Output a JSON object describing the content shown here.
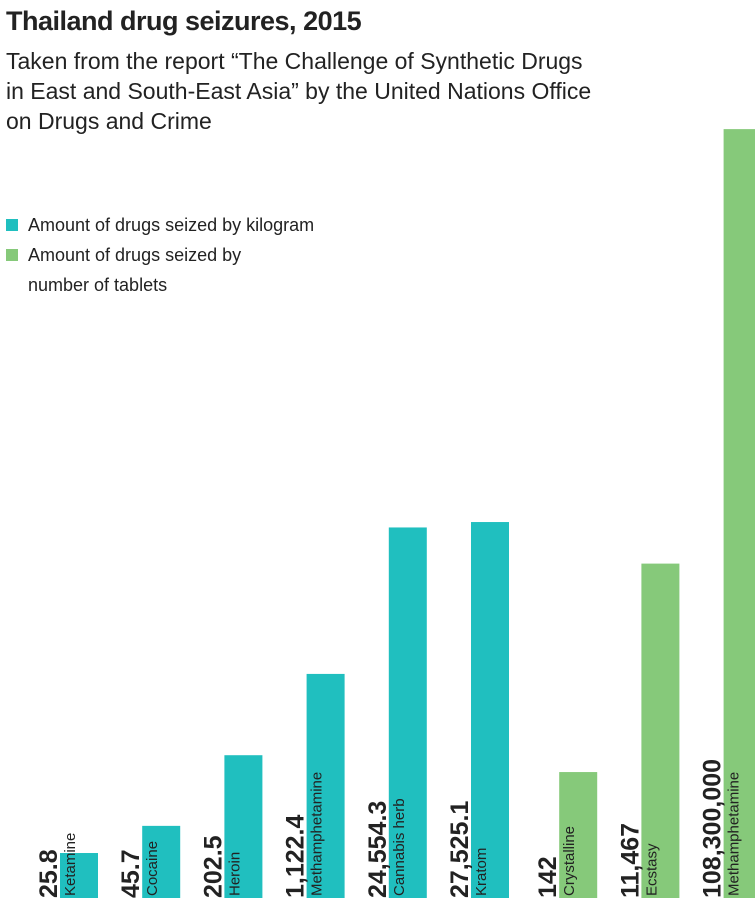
{
  "chart_data": {
    "type": "bar",
    "title": "Thailand drug seizures, 2015",
    "subtitle": "Taken from the report “The Challenge of Synthetic Drugs in East and South-East Asia” by the United Nations Office on Drugs and Crime",
    "categories": [
      "Ketamine",
      "Cocaine",
      "Heroin",
      "Methamphetamine",
      "Cannabis herb",
      "Kratom",
      "Crystalline",
      "Ecstasy",
      "Methamphetamine"
    ],
    "series": [
      {
        "name": "Amount of drugs seized by kilogram",
        "color": "#20bfbf",
        "values": [
          25.8,
          45.7,
          202.5,
          1122.4,
          24554.3,
          27525.1,
          null,
          null,
          null
        ],
        "value_labels": [
          "25.8",
          "45.7",
          "202.5",
          "1,122.4",
          "24,554.3",
          "27,525.1",
          null,
          null,
          null
        ]
      },
      {
        "name": "Amount of drugs seized by number of tablets",
        "color": "#86c97a",
        "values": [
          null,
          null,
          null,
          null,
          null,
          null,
          142,
          11467,
          108300000
        ],
        "value_labels": [
          null,
          null,
          null,
          null,
          null,
          null,
          "142",
          "11,467",
          "108,300,000"
        ]
      }
    ],
    "log_scale": true,
    "ylim": [
      10,
      200000000
    ]
  }
}
